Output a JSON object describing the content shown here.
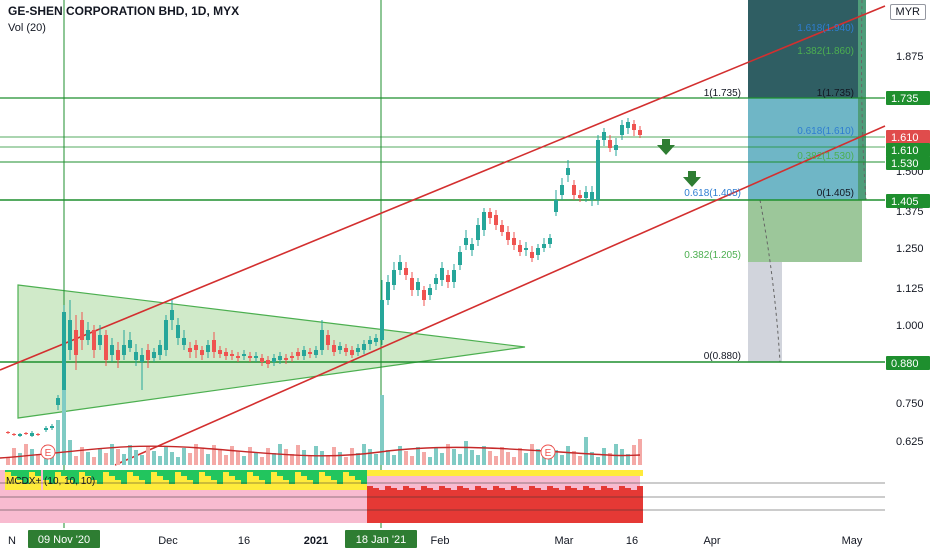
{
  "header": {
    "title": "GE-SHEN CORPORATION BHD, 1D, MYX",
    "volume_label": "Vol (20)",
    "currency": "MYR"
  },
  "indicator": {
    "label": "MCDX+ (10, 10, 10)"
  },
  "price_axis": {
    "ticks": [
      "1.875",
      "1.500",
      "1.375",
      "1.250",
      "1.125",
      "1.000",
      "0.875",
      "0.750",
      "0.625"
    ],
    "tags": [
      {
        "text": "1.735",
        "color": "#1e8f2e"
      },
      {
        "text": "1.610",
        "color": "#e04c4c"
      },
      {
        "text": "1.610",
        "color": "#1e8f2e"
      },
      {
        "text": "1.530",
        "color": "#1e8f2e"
      },
      {
        "text": "1.405",
        "color": "#1e8f2e"
      },
      {
        "text": "0.880",
        "color": "#1e8f2e"
      }
    ]
  },
  "time_axis": {
    "labels": [
      "N",
      "Dec",
      "16",
      "2021",
      "Feb",
      "Mar",
      "16",
      "Apr",
      "May"
    ],
    "highlights": [
      "09 Nov '20",
      "18 Jan '21"
    ]
  },
  "fib_labels": [
    {
      "text": "1.618(1.940)",
      "color": "#2e7dd1"
    },
    {
      "text": "1.382(1.860)",
      "color": "#4caf50"
    },
    {
      "text": "1(1.735)",
      "color": "#131722"
    },
    {
      "text": "1(1.735)",
      "color": "#131722"
    },
    {
      "text": "0.618(1.610)",
      "color": "#2e7dd1"
    },
    {
      "text": "0.382(1.530)",
      "color": "#4caf50"
    },
    {
      "text": "0.618(1.405)",
      "color": "#2e7dd1"
    },
    {
      "text": "0(1.405)",
      "color": "#131722"
    },
    {
      "text": "0.382(1.205)",
      "color": "#4caf50"
    },
    {
      "text": "0(0.880)",
      "color": "#131722"
    }
  ],
  "earnings_markers": [
    "E",
    "E"
  ],
  "colors": {
    "up": "#26a69a",
    "down": "#ef5350",
    "guide": "#1e8f2e",
    "channel": "#d32f2f",
    "triangle_fill": "#c8e6c0"
  },
  "icons": [
    "arrow-down-icon",
    "arrow-down-icon"
  ]
}
